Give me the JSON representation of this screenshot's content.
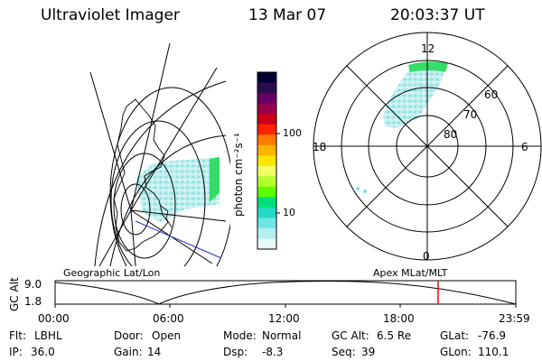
{
  "header": {
    "instrument": "Ultraviolet Imager",
    "date": "13 Mar 07",
    "time": "20:03:37 UT"
  },
  "colorbar": {
    "label": "photon cm⁻²s⁻¹",
    "ticks": [
      "100",
      "10"
    ],
    "scale": "log",
    "colors": [
      "#000033",
      "#2a0d4d",
      "#660066",
      "#99004d",
      "#c8001a",
      "#ff2200",
      "#ff7a00",
      "#ffb400",
      "#ffe600",
      "#f2ff66",
      "#b6ff2e",
      "#5aff00",
      "#00e07a",
      "#22d9c8",
      "#6fe6e6",
      "#b4f0f0",
      "#e8f8f8"
    ]
  },
  "left_map": {
    "title": "Geographic Lat/Lon"
  },
  "right_map": {
    "title": "Apex MLat/MLT",
    "mlt_labels": [
      "12",
      "18",
      "6",
      "0"
    ],
    "lat_labels": [
      "60",
      "70",
      "80"
    ]
  },
  "altitude_plot": {
    "ylabel": "GC Alt",
    "yticks": [
      "9.0",
      "1.8"
    ],
    "xticks": [
      "00:00",
      "06:00",
      "12:00",
      "18:00",
      "23:59"
    ],
    "marker_color": "#ff0000"
  },
  "status": {
    "filter_label": "Flt:",
    "filter_value": "LBHL",
    "door_label": "Door:",
    "door_value": "Open",
    "mode_label": "Mode:",
    "mode_value": "Normal",
    "gcalt_label": "GC Alt:",
    "gcalt_value": "6.5 Re",
    "glat_label": "GLat:",
    "glat_value": "-76.9",
    "ip_label": "IP:",
    "ip_value": "36.0",
    "gain_label": "Gain:",
    "gain_value": "14",
    "dsp_label": "Dsp:",
    "dsp_value": "-8.3",
    "seq_label": "Seq:",
    "seq_value": "39",
    "glon_label": "GLon:",
    "glon_value": "110.1"
  }
}
